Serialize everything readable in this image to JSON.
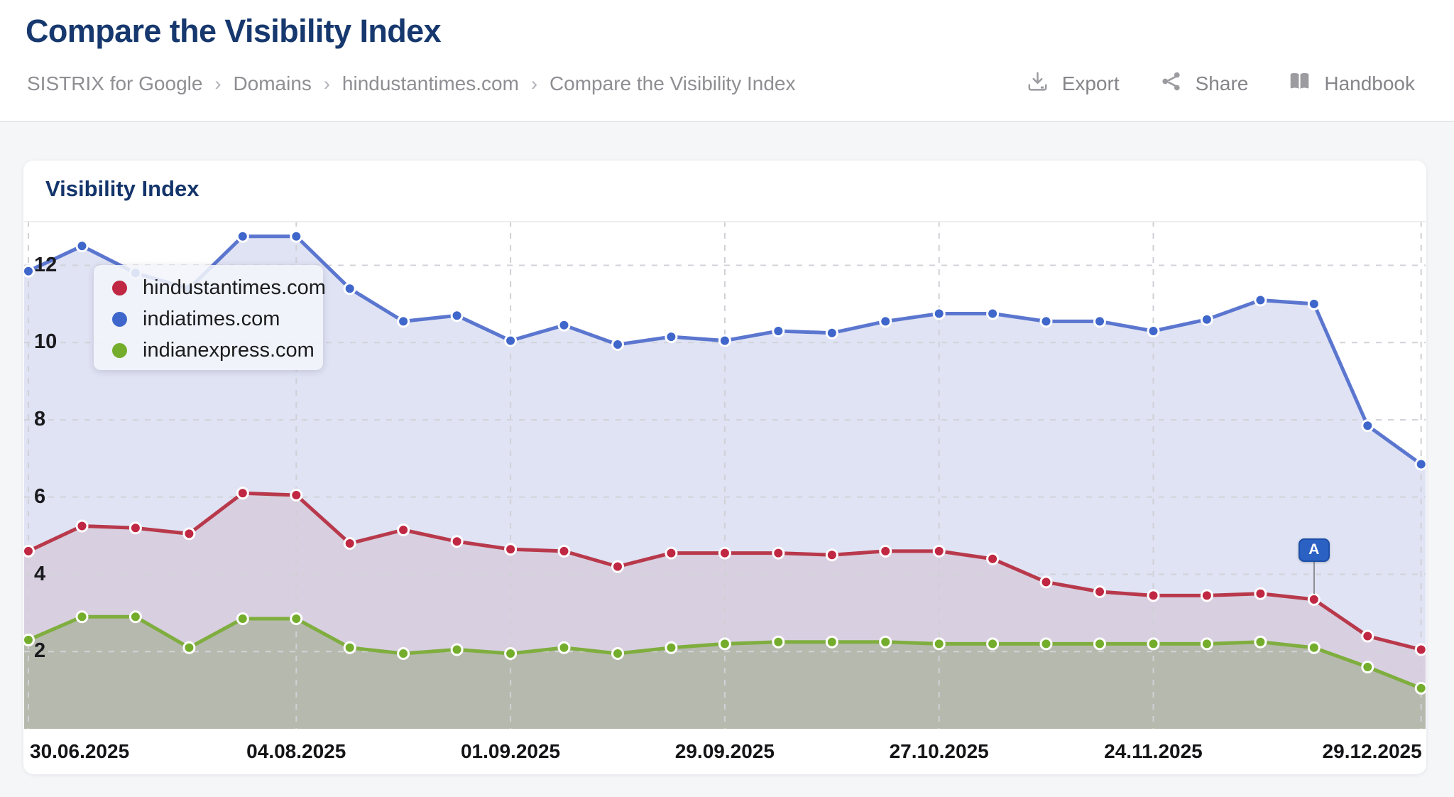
{
  "header": {
    "title": "Compare the Visibility Index",
    "breadcrumb": [
      "SISTRIX for Google",
      "Domains",
      "hindustantimes.com",
      "Compare the Visibility Index"
    ],
    "actions": [
      {
        "id": "export",
        "label": "Export"
      },
      {
        "id": "share",
        "label": "Share"
      },
      {
        "id": "handbook",
        "label": "Handbook"
      }
    ]
  },
  "chart_data": {
    "type": "line",
    "title": "Visibility Index",
    "x": [
      "30.06.2025",
      "07.07.2025",
      "14.07.2025",
      "21.07.2025",
      "28.07.2025",
      "04.08.2025",
      "11.08.2025",
      "18.08.2025",
      "25.08.2025",
      "01.09.2025",
      "08.09.2025",
      "15.09.2025",
      "22.09.2025",
      "29.09.2025",
      "06.10.2025",
      "13.10.2025",
      "20.10.2025",
      "27.10.2025",
      "03.11.2025",
      "10.11.2025",
      "17.11.2025",
      "24.11.2025",
      "01.12.2025",
      "08.12.2025",
      "15.12.2025",
      "22.12.2025",
      "29.12.2025"
    ],
    "x_tick_indices": [
      0,
      5,
      9,
      13,
      17,
      21,
      26
    ],
    "x_tick_labels": [
      "30.06.2025",
      "04.08.2025",
      "01.09.2025",
      "29.09.2025",
      "27.10.2025",
      "24.11.2025",
      "29.12.2025"
    ],
    "y_ticks": [
      2,
      4,
      6,
      8,
      10,
      12
    ],
    "ylim": [
      0,
      13.15
    ],
    "grid": true,
    "legend_position": "top-left",
    "series": [
      {
        "name": "hindustantimes.com",
        "dot_color": "#c02742",
        "line_color": "#b8394b",
        "fill_color": "#d8cfe0",
        "values": [
          4.6,
          5.25,
          5.2,
          5.05,
          6.1,
          6.05,
          4.8,
          5.15,
          4.85,
          4.65,
          4.6,
          4.2,
          4.55,
          4.55,
          4.55,
          4.5,
          4.6,
          4.6,
          4.4,
          3.8,
          3.55,
          3.45,
          3.45,
          3.5,
          3.35,
          2.4,
          2.05
        ]
      },
      {
        "name": "indiatimes.com",
        "dot_color": "#3f66cb",
        "line_color": "#5b76cf",
        "fill_color": "#dfe3f4",
        "values": [
          11.85,
          12.5,
          11.8,
          11.4,
          12.75,
          12.75,
          11.4,
          10.55,
          10.7,
          10.05,
          10.45,
          9.95,
          10.15,
          10.05,
          10.3,
          10.25,
          10.55,
          10.75,
          10.75,
          10.55,
          10.55,
          10.3,
          10.6,
          11.1,
          11.0,
          7.85,
          6.85
        ]
      },
      {
        "name": "indianexpress.com",
        "dot_color": "#74ad2c",
        "line_color": "#7fae3f",
        "fill_color": "#b6b9ad",
        "values": [
          2.3,
          2.9,
          2.9,
          2.1,
          2.85,
          2.85,
          2.1,
          1.95,
          2.05,
          1.95,
          2.1,
          1.95,
          2.1,
          2.2,
          2.25,
          2.25,
          2.25,
          2.2,
          2.2,
          2.2,
          2.2,
          2.2,
          2.2,
          2.25,
          2.1,
          1.6,
          1.05
        ]
      }
    ],
    "draw_order": [
      "indiatimes.com",
      "hindustantimes.com",
      "indianexpress.com"
    ],
    "annotation": {
      "label": "A",
      "series": "hindustantimes.com",
      "x": "15.12.2025",
      "index": 24,
      "color": "#2c61c4"
    }
  }
}
